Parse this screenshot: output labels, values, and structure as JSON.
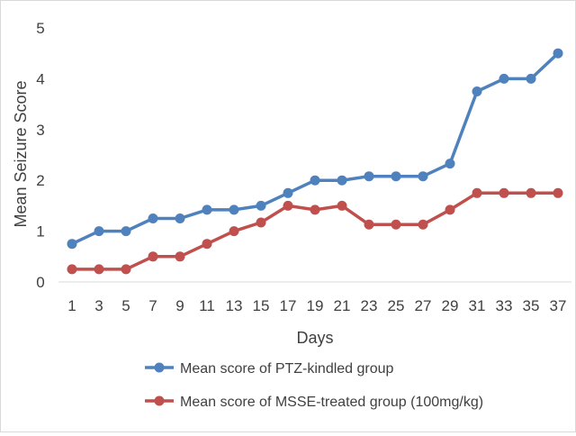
{
  "chart_data": {
    "type": "line",
    "title": "",
    "xlabel": "Days",
    "ylabel": "Mean Seizure Score",
    "categories": [
      "1",
      "3",
      "5",
      "7",
      "9",
      "11",
      "13",
      "15",
      "17",
      "19",
      "21",
      "23",
      "25",
      "27",
      "29",
      "31",
      "33",
      "35",
      "37"
    ],
    "ylim": [
      0,
      5
    ],
    "yticks": [
      0,
      1,
      2,
      3,
      4,
      5
    ],
    "grid": false,
    "legend_position": "bottom",
    "series": [
      {
        "name": "Mean score of PTZ-kindled group",
        "color": "#4f81bd",
        "values": [
          0.75,
          1.0,
          1.0,
          1.25,
          1.25,
          1.42,
          1.42,
          1.5,
          1.75,
          2.0,
          2.0,
          2.08,
          2.08,
          2.08,
          2.33,
          3.75,
          4.0,
          4.0,
          4.5
        ]
      },
      {
        "name": "Mean score of MSSE-treated group (100mg/kg)",
        "color": "#c0504d",
        "values": [
          0.25,
          0.25,
          0.25,
          0.5,
          0.5,
          0.75,
          1.0,
          1.17,
          1.5,
          1.42,
          1.5,
          1.13,
          1.13,
          1.13,
          1.42,
          1.75,
          1.75,
          1.75,
          1.75
        ]
      }
    ]
  }
}
